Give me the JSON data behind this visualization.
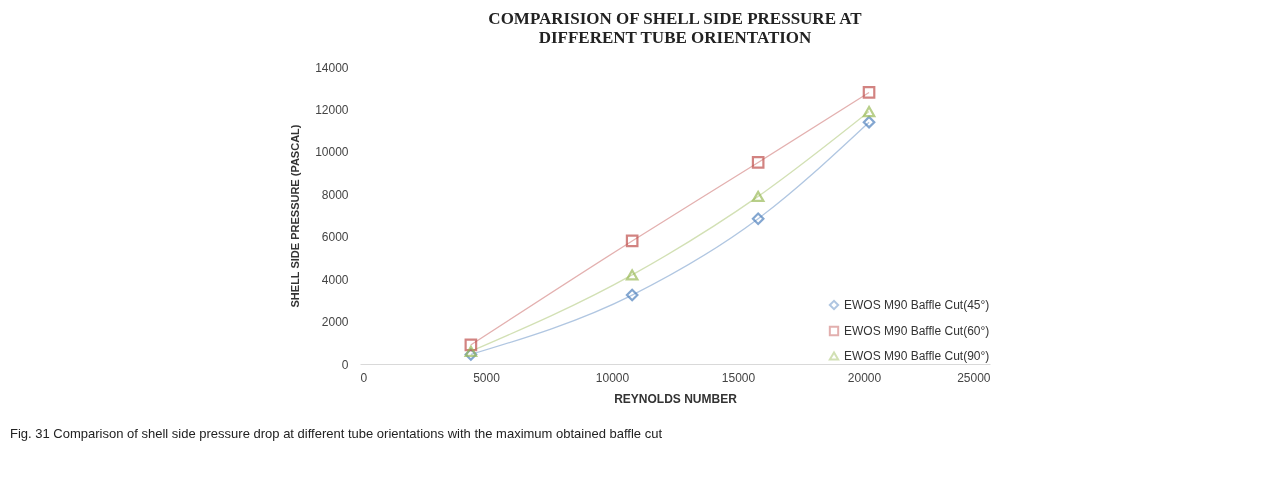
{
  "chart_data": {
    "type": "line",
    "title": [
      "COMPARISION OF SHELL SIDE PRESSURE AT",
      "DIFFERENT TUBE ORIENTATION"
    ],
    "xlabel": "REYNOLDS NUMBER",
    "ylabel": "SHELL SIDE PRESSURE (PASCAL)",
    "x": [
      4400,
      10800,
      15800,
      20200
    ],
    "series": [
      {
        "name": "EWOS M90 Baffle Cut(45°)",
        "color": "#4f81bd",
        "marker": "diamond",
        "values": [
          450,
          3250,
          6850,
          11400
        ]
      },
      {
        "name": "EWOS M90 Baffle Cut(60°)",
        "color": "#c0504d",
        "marker": "square",
        "values": [
          900,
          5800,
          9500,
          12800
        ]
      },
      {
        "name": "EWOS M90 Baffle Cut(90°)",
        "color": "#9bbb59",
        "marker": "triangle",
        "values": [
          600,
          4200,
          7900,
          11900
        ]
      }
    ],
    "xlim": [
      0,
      25000
    ],
    "xticks": [
      0,
      5000,
      10000,
      15000,
      20000,
      25000
    ],
    "ylim": [
      0,
      14000
    ],
    "yticks": [
      0,
      2000,
      4000,
      6000,
      8000,
      10000,
      12000,
      14000
    ],
    "grid": false,
    "legend": "bottom right",
    "line_style": "solid",
    "annotations": [
      "Fig. 31 Comparison of shell side pressure drop at different tube orientations with the maximum obtained baffle cut"
    ]
  }
}
